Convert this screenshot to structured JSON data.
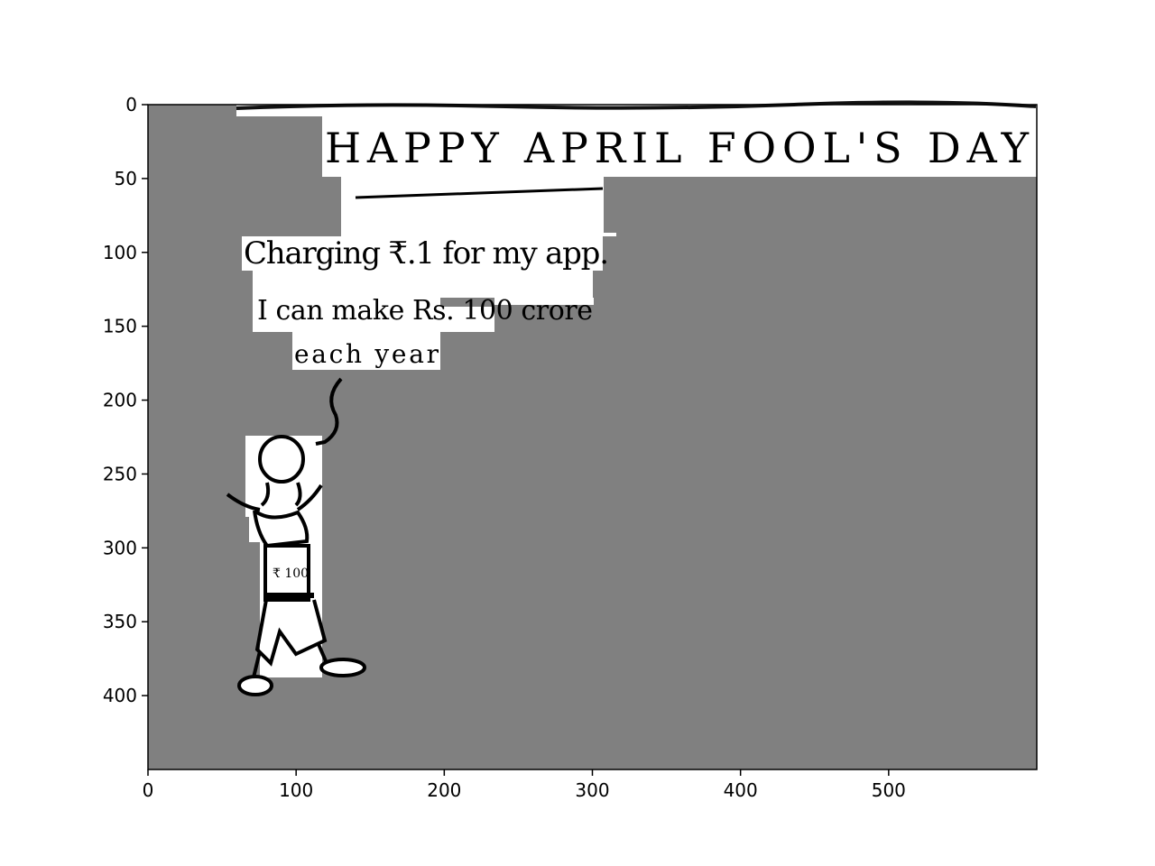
{
  "image": {
    "heading": "HAPPY APRIL FOOL'S DAY",
    "line1": "Charging ₹.1 for my app.",
    "line2": "I can make Rs. 100 crore",
    "line3": "each year",
    "shirt_text": "₹ 100",
    "colors": {
      "masked_area": "#808080",
      "paper": "#ffffff",
      "ink": "#000000"
    }
  },
  "axes": {
    "x_ticks": [
      0,
      100,
      200,
      300,
      400,
      500
    ],
    "y_ticks": [
      0,
      50,
      100,
      150,
      200,
      250,
      300,
      350,
      400
    ],
    "xlim": [
      0,
      600
    ],
    "ylim": [
      450,
      0
    ]
  }
}
